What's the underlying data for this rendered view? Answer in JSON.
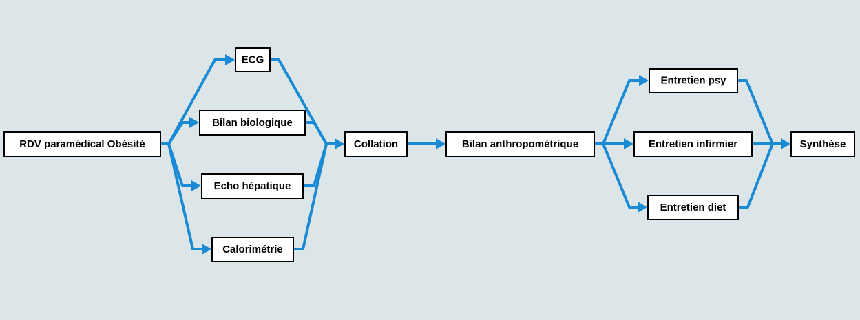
{
  "diagram": {
    "edge_color": "#1a8ad4",
    "node_fill": "#ffffff",
    "node_border": "#000000",
    "background": "#dce5e8",
    "nodes": [
      {
        "id": "rdv",
        "label": "RDV paramédical Obésité"
      },
      {
        "id": "ecg",
        "label": "ECG"
      },
      {
        "id": "bilan_bio",
        "label": "Bilan biologique"
      },
      {
        "id": "echo",
        "label": "Echo hépatique"
      },
      {
        "id": "calo",
        "label": "Calorimétrie"
      },
      {
        "id": "collation",
        "label": "Collation"
      },
      {
        "id": "bilan_anthro",
        "label": "Bilan anthropométrique"
      },
      {
        "id": "psy",
        "label": "Entretien psy"
      },
      {
        "id": "infirmier",
        "label": "Entretien infirmier"
      },
      {
        "id": "diet",
        "label": "Entretien diet"
      },
      {
        "id": "synthese",
        "label": "Synthèse"
      }
    ],
    "edges": [
      {
        "from": "rdv",
        "to": "ecg"
      },
      {
        "from": "rdv",
        "to": "bilan_bio"
      },
      {
        "from": "rdv",
        "to": "echo"
      },
      {
        "from": "rdv",
        "to": "calo"
      },
      {
        "from": "ecg",
        "to": "collation"
      },
      {
        "from": "bilan_bio",
        "to": "collation"
      },
      {
        "from": "echo",
        "to": "collation"
      },
      {
        "from": "calo",
        "to": "collation"
      },
      {
        "from": "collation",
        "to": "bilan_anthro"
      },
      {
        "from": "bilan_anthro",
        "to": "psy"
      },
      {
        "from": "bilan_anthro",
        "to": "infirmier"
      },
      {
        "from": "bilan_anthro",
        "to": "diet"
      },
      {
        "from": "psy",
        "to": "synthese"
      },
      {
        "from": "infirmier",
        "to": "synthese"
      },
      {
        "from": "diet",
        "to": "synthese"
      }
    ]
  }
}
